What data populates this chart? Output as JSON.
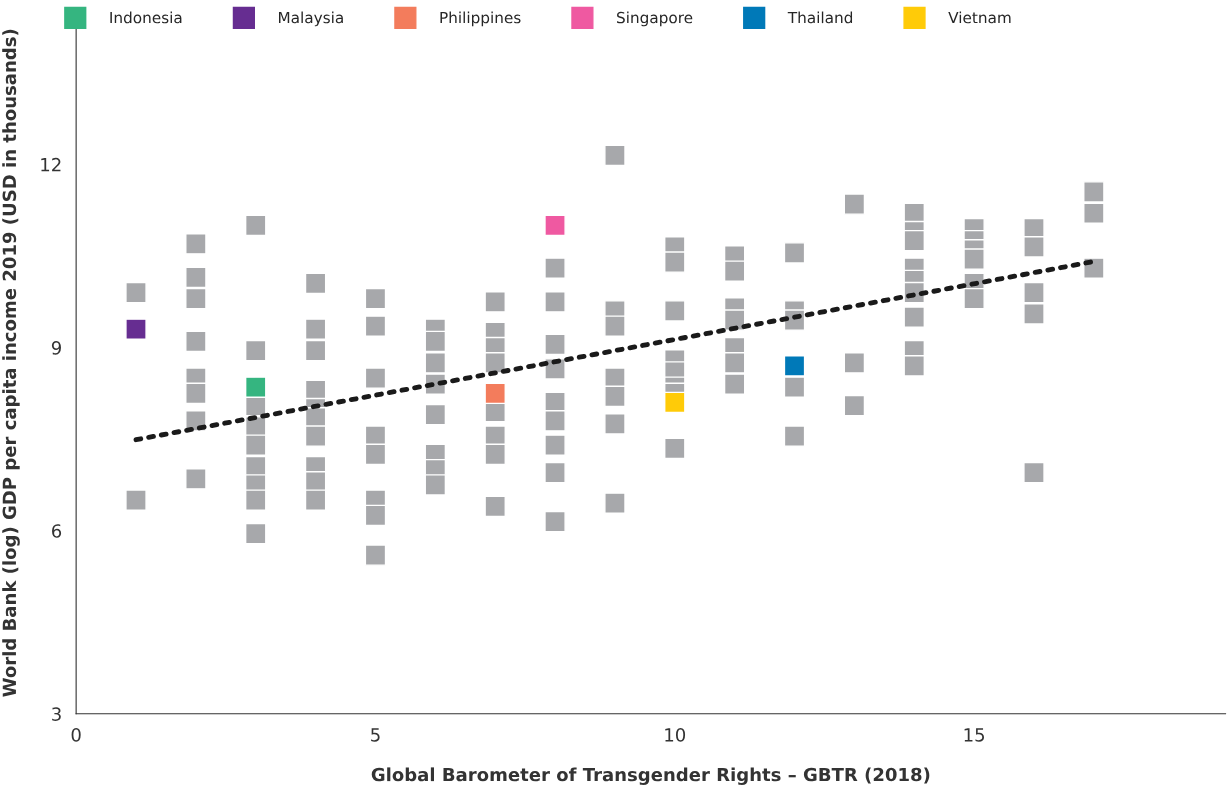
{
  "chart_data": {
    "type": "scatter",
    "xlabel": "Global Barometer of Transgender Rights – GBTR (2018)",
    "ylabel": "World Bank (log) GDP per capita income 2019 (USD in thousands)",
    "xlim": [
      0,
      19.2
    ],
    "ylim": [
      3,
      14.5
    ],
    "xticks": [
      0,
      5,
      10,
      15
    ],
    "yticks": [
      3,
      6,
      9,
      12
    ],
    "grid": false,
    "legend": "top",
    "marker": "square",
    "series": [
      {
        "color": "#a7a8ab",
        "x": [
          1,
          1,
          2,
          2,
          2,
          2,
          2,
          2,
          2,
          2,
          3,
          3,
          3,
          3,
          3,
          3,
          3,
          3,
          3,
          4,
          4,
          4,
          4,
          4,
          4,
          4,
          4,
          4,
          4,
          5,
          5,
          5,
          5,
          5,
          5,
          5,
          5,
          6,
          6,
          6,
          6,
          6,
          6,
          6,
          6,
          7,
          7,
          7,
          7,
          7,
          7,
          7,
          7,
          8,
          8,
          8,
          8,
          8,
          8,
          8,
          8,
          8,
          9,
          9,
          9,
          9,
          9,
          9,
          9,
          10,
          10,
          10,
          10,
          10,
          10,
          10,
          10,
          11,
          11,
          11,
          11,
          11,
          11,
          11,
          12,
          12,
          12,
          12,
          12,
          13,
          13,
          13,
          14,
          14,
          14,
          14,
          14,
          14,
          14,
          14,
          14,
          15,
          15,
          15,
          15,
          15,
          15,
          16,
          16,
          16,
          16,
          16,
          17,
          17,
          17
        ],
        "values": [
          9.9,
          6.5,
          10.7,
          10.15,
          9.8,
          9.1,
          8.5,
          8.25,
          7.8,
          6.85,
          11.0,
          8.95,
          8.05,
          7.7,
          7.4,
          7.05,
          6.75,
          6.5,
          5.95,
          10.05,
          9.3,
          8.95,
          8.3,
          8.0,
          7.85,
          7.55,
          7.05,
          6.8,
          6.5,
          9.8,
          9.35,
          8.5,
          7.55,
          7.25,
          6.5,
          6.25,
          5.6,
          9.3,
          9.1,
          8.75,
          8.4,
          7.9,
          7.25,
          7.0,
          6.75,
          9.75,
          9.25,
          9.0,
          8.75,
          7.95,
          7.55,
          7.25,
          6.4,
          10.3,
          9.75,
          9.05,
          8.65,
          8.1,
          7.8,
          7.4,
          6.95,
          6.15,
          12.15,
          9.6,
          9.35,
          8.5,
          8.2,
          7.75,
          6.45,
          10.65,
          10.4,
          9.6,
          8.8,
          8.6,
          8.35,
          8.25,
          7.35,
          10.5,
          10.25,
          9.65,
          9.45,
          9.0,
          8.75,
          8.4,
          10.55,
          9.6,
          9.45,
          8.35,
          7.55,
          11.35,
          8.75,
          8.05,
          11.2,
          10.9,
          10.75,
          10.3,
          10.1,
          9.9,
          9.5,
          8.95,
          8.7,
          10.95,
          10.75,
          10.6,
          10.45,
          10.05,
          9.8,
          10.95,
          10.65,
          9.9,
          9.55,
          6.95,
          11.55,
          11.2,
          10.3
        ]
      },
      {
        "name": "Indonesia",
        "color": "#35b580",
        "x": [
          3
        ],
        "values": [
          8.35
        ]
      },
      {
        "name": "Malaysia",
        "color": "#662d91",
        "x": [
          1
        ],
        "values": [
          9.3
        ]
      },
      {
        "name": "Philippines",
        "color": "#f37c5c",
        "x": [
          7
        ],
        "values": [
          8.25
        ]
      },
      {
        "name": "Singapore",
        "color": "#ef59a1",
        "x": [
          8
        ],
        "values": [
          11.0
        ]
      },
      {
        "name": "Thailand",
        "color": "#0079b8",
        "x": [
          12
        ],
        "values": [
          8.7
        ]
      },
      {
        "name": "Vietnam",
        "color": "#ffcb08",
        "x": [
          10
        ],
        "values": [
          8.1
        ]
      },
      {
        "type": "line",
        "color": "#1a1a1a",
        "line_style": "dotted",
        "marker": "none",
        "x": [
          1,
          17
        ],
        "values": [
          7.49,
          10.41
        ]
      }
    ]
  }
}
